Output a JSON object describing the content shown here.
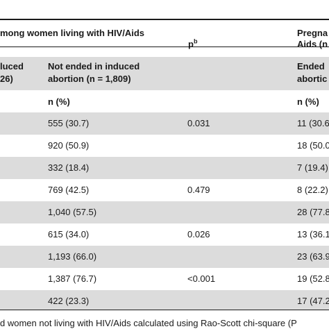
{
  "header": {
    "group1_title": "mong women living with HIV/Aids",
    "p_label": "p",
    "p_sup": "b",
    "group2_title_line1": "Pregna",
    "group2_title_line2": "Aids (n"
  },
  "subheader": {
    "col0_line1": "luced",
    "col0_line2": "26)",
    "col1_line1": "Not ended in induced",
    "col1_line2": "abortion (n = 1,809)",
    "col3_line1": "Ended",
    "col3_line2": "abortic"
  },
  "units": {
    "col1": "n (%)",
    "col3": "n (%)"
  },
  "rows": [
    {
      "c1": "555 (30.7)",
      "p": "0.031",
      "c3": "11 (30.6"
    },
    {
      "c1": "920 (50.9)",
      "p": "",
      "c3": "18 (50.0"
    },
    {
      "c1": "332 (18.4)",
      "p": "",
      "c3": "7 (19.4)"
    },
    {
      "c1": "769 (42.5)",
      "p": "0.479",
      "c3": "8 (22.2)"
    },
    {
      "c1": "1,040 (57.5)",
      "p": "",
      "c3": "28 (77.8"
    },
    {
      "c1": "615 (34.0)",
      "p": "0.026",
      "c3": "13 (36.1"
    },
    {
      "c1": "1,193 (66.0)",
      "p": "",
      "c3": "23 (63.9"
    },
    {
      "c1": "1,387 (76.7)",
      "p": "<0.001",
      "c3": "19 (52.8"
    },
    {
      "c1": "422 (23.3)",
      "p": "",
      "c3": "17 (47.2"
    }
  ],
  "footnote": "d women not living with HIV/Aids calculated using Rao-Scott chi-square (P"
}
